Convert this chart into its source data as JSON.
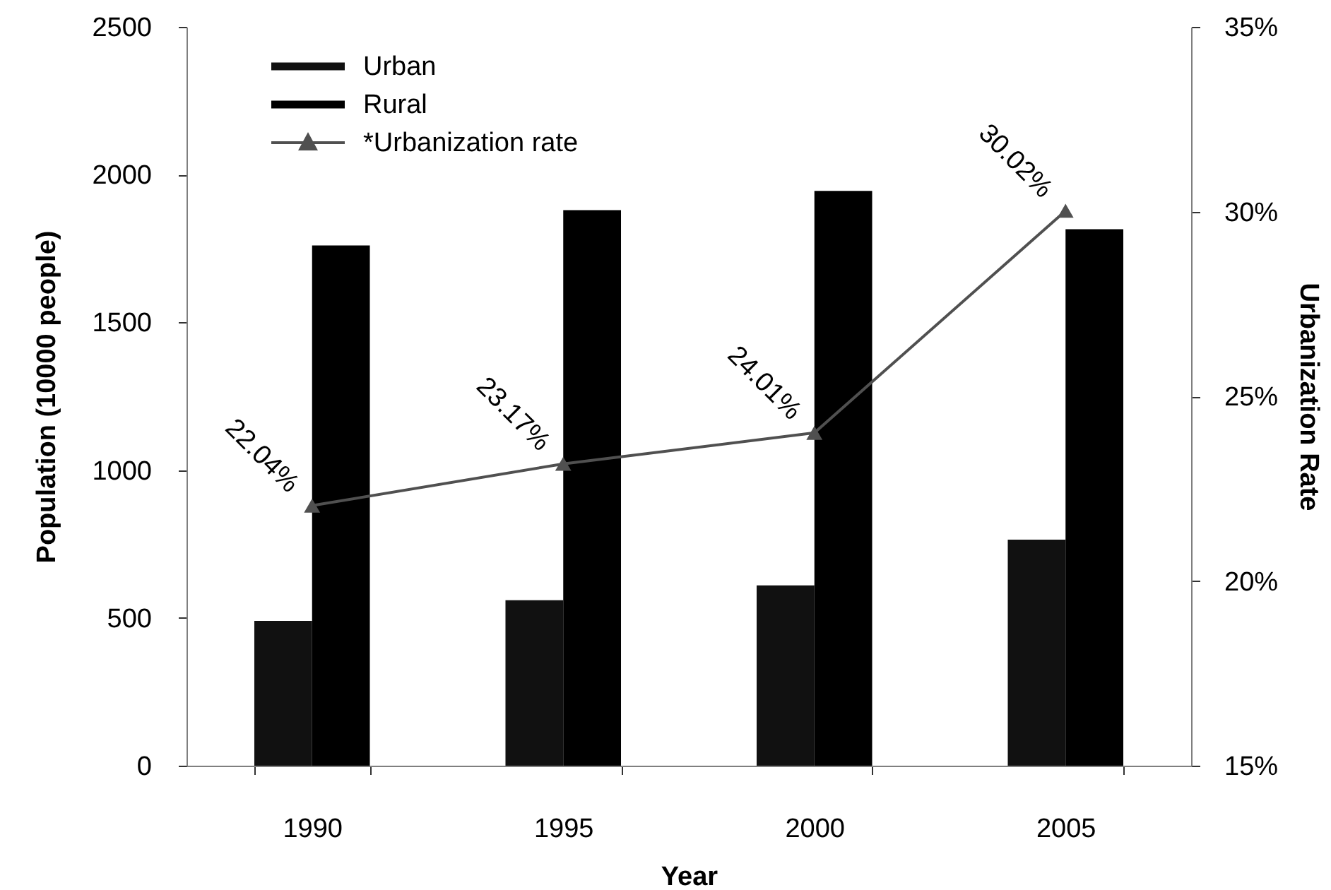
{
  "chart_data": {
    "type": "bar",
    "categories": [
      "1990",
      "1995",
      "2000",
      "2005"
    ],
    "xlabel": "Year",
    "ylabel": "Population (10000 people)",
    "y2label": "Urbanization Rate",
    "ylim": [
      0,
      2500
    ],
    "yticks": [
      0,
      500,
      1000,
      1500,
      2000,
      2500
    ],
    "y2lim": [
      15,
      35
    ],
    "y2ticks": [
      {
        "value": 15,
        "label": "15%"
      },
      {
        "value": 20,
        "label": "20%"
      },
      {
        "value": 25,
        "label": "25%"
      },
      {
        "value": 30,
        "label": "30%"
      },
      {
        "value": 35,
        "label": "35%"
      }
    ],
    "legend": "top left",
    "marker": "triangle",
    "series": [
      {
        "name": "Urban",
        "color": "#111111",
        "values": [
          490,
          560,
          610,
          765
        ]
      },
      {
        "name": "Rural",
        "color": "#000000",
        "values": [
          1760,
          1880,
          1945,
          1815
        ]
      },
      {
        "name": "*Urbanization rate",
        "type": "line",
        "axis": "y2",
        "color": "#505050",
        "values": [
          22.04,
          23.17,
          24.01,
          30.02
        ],
        "value_labels": [
          "22.04%",
          "23.17%",
          "24.01%",
          "30.02%"
        ]
      }
    ]
  }
}
